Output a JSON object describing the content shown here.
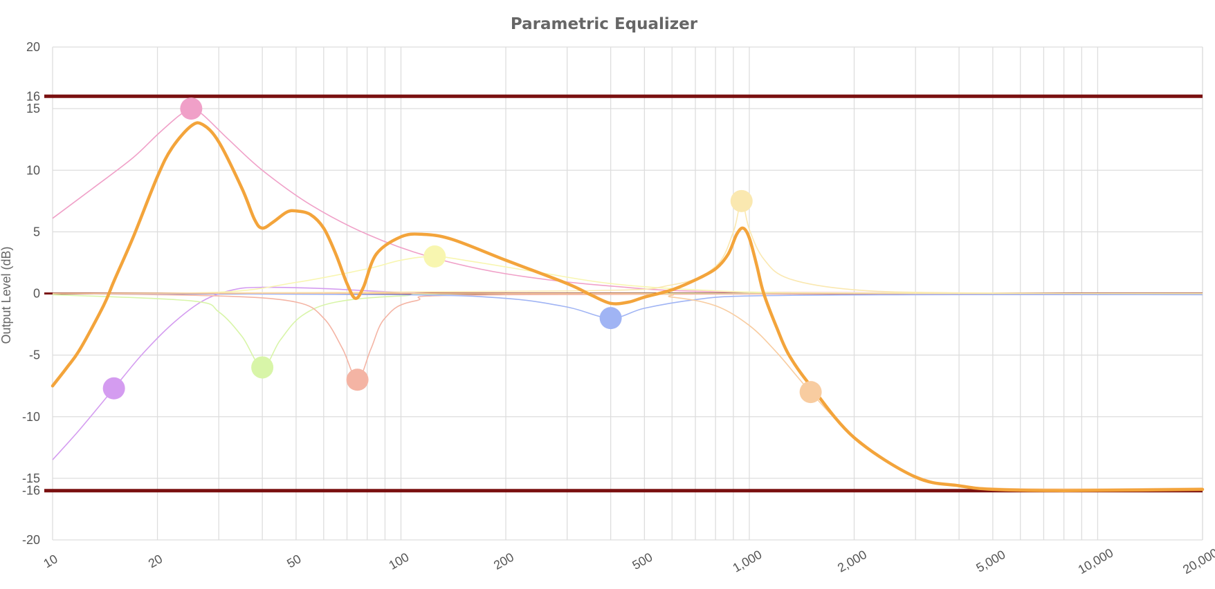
{
  "chart_data": {
    "type": "line",
    "title": "Parametric Equalizer",
    "xlabel": "",
    "ylabel": "Output Level (dB)",
    "x_scale": "log",
    "xlim": [
      10,
      20000
    ],
    "ylim": [
      -20,
      20
    ],
    "x_ticks": [
      10,
      20,
      50,
      100,
      200,
      500,
      1000,
      2000,
      5000,
      10000,
      20000
    ],
    "x_tick_labels": [
      "10",
      "20",
      "50",
      "100",
      "200",
      "500",
      "1,000",
      "2,000",
      "5,000",
      "10,000",
      "20,000"
    ],
    "y_ticks": [
      20,
      16,
      15,
      10,
      5,
      0,
      -5,
      -10,
      -15,
      -16,
      -20
    ],
    "y_tick_labels": [
      "20",
      "16",
      "15",
      "10",
      "5",
      "0",
      "-5",
      "-10",
      "-15",
      "-16",
      "-20"
    ],
    "grid": true,
    "reference_lines": [
      {
        "y": 16,
        "color": "#7a1010"
      },
      {
        "y": 0,
        "color": "#7a1010"
      },
      {
        "y": -16,
        "color": "#7a1010"
      }
    ],
    "bands": [
      {
        "freq": 15,
        "gain": -7.7,
        "color": "#d49cf0",
        "curve": [
          [
            10,
            -13.5
          ],
          [
            12,
            -11
          ],
          [
            15,
            -7.7
          ],
          [
            18,
            -5
          ],
          [
            22,
            -2.5
          ],
          [
            27,
            -0.6
          ],
          [
            33,
            0.3
          ],
          [
            40,
            0.5
          ],
          [
            60,
            0.4
          ],
          [
            100,
            0.1
          ],
          [
            200,
            0
          ],
          [
            20000,
            0
          ]
        ]
      },
      {
        "freq": 25,
        "gain": 15,
        "color": "#f0a0c8",
        "curve": [
          [
            10,
            6.1
          ],
          [
            13,
            8.5
          ],
          [
            17,
            11
          ],
          [
            20,
            12.9
          ],
          [
            23,
            14.4
          ],
          [
            25,
            15
          ],
          [
            27,
            14.5
          ],
          [
            32,
            12.5
          ],
          [
            40,
            10
          ],
          [
            55,
            7.2
          ],
          [
            80,
            4.8
          ],
          [
            120,
            3
          ],
          [
            200,
            1.6
          ],
          [
            400,
            0.6
          ],
          [
            1000,
            0.1
          ],
          [
            20000,
            0
          ]
        ]
      },
      {
        "freq": 40,
        "gain": -6,
        "color": "#d8f5a8",
        "curve": [
          [
            10,
            -0.1
          ],
          [
            25,
            -0.6
          ],
          [
            30,
            -1.5
          ],
          [
            35,
            -3.5
          ],
          [
            40,
            -6
          ],
          [
            45,
            -3.8
          ],
          [
            52,
            -1.8
          ],
          [
            65,
            -0.7
          ],
          [
            100,
            -0.2
          ],
          [
            200,
            0
          ],
          [
            20000,
            0
          ]
        ]
      },
      {
        "freq": 75,
        "gain": -7,
        "color": "#f4b4a4",
        "curve": [
          [
            10,
            0
          ],
          [
            30,
            -0.2
          ],
          [
            50,
            -0.7
          ],
          [
            60,
            -2
          ],
          [
            68,
            -4.5
          ],
          [
            75,
            -7
          ],
          [
            82,
            -4.5
          ],
          [
            90,
            -2
          ],
          [
            110,
            -0.6
          ],
          [
            200,
            -0.1
          ],
          [
            20000,
            0
          ]
        ]
      },
      {
        "freq": 125,
        "gain": 3,
        "color": "#f8f6b0",
        "curve": [
          [
            10,
            0
          ],
          [
            30,
            0.1
          ],
          [
            50,
            0.9
          ],
          [
            80,
            2
          ],
          [
            100,
            2.7
          ],
          [
            125,
            3
          ],
          [
            160,
            2.6
          ],
          [
            250,
            1.7
          ],
          [
            400,
            0.8
          ],
          [
            700,
            0.3
          ],
          [
            1500,
            0.05
          ],
          [
            20000,
            0
          ]
        ]
      },
      {
        "freq": 400,
        "gain": -2,
        "color": "#a0b4f4",
        "curve": [
          [
            10,
            0
          ],
          [
            100,
            -0.1
          ],
          [
            200,
            -0.4
          ],
          [
            300,
            -1.1
          ],
          [
            400,
            -2
          ],
          [
            500,
            -1.2
          ],
          [
            700,
            -0.5
          ],
          [
            1000,
            -0.2
          ],
          [
            3000,
            -0.1
          ],
          [
            20000,
            -0.1
          ]
        ]
      },
      {
        "freq": 950,
        "gain": 7.5,
        "color": "#fae8b0",
        "curve": [
          [
            10,
            0
          ],
          [
            300,
            0.2
          ],
          [
            600,
            0.7
          ],
          [
            800,
            2.2
          ],
          [
            900,
            5
          ],
          [
            950,
            7.5
          ],
          [
            1000,
            5.2
          ],
          [
            1100,
            2.8
          ],
          [
            1300,
            1.2
          ],
          [
            2000,
            0.3
          ],
          [
            4000,
            0.05
          ],
          [
            20000,
            0
          ]
        ]
      },
      {
        "freq": 1500,
        "gain": -8,
        "color": "#f8cca0",
        "curve": [
          [
            10,
            0
          ],
          [
            400,
            0
          ],
          [
            600,
            -0.3
          ],
          [
            800,
            -1
          ],
          [
            1000,
            -2.6
          ],
          [
            1200,
            -4.8
          ],
          [
            1500,
            -8
          ],
          [
            2000,
            -11.6
          ],
          [
            3000,
            -14.8
          ],
          [
            5000,
            -15.8
          ],
          [
            20000,
            -15.8
          ]
        ]
      }
    ],
    "series": [
      {
        "name": "",
        "color": "#f3a43b",
        "points": [
          [
            10,
            -7.5
          ],
          [
            11,
            -6
          ],
          [
            12,
            -4.5
          ],
          [
            14,
            -1
          ],
          [
            15,
            1
          ],
          [
            17,
            4.5
          ],
          [
            20,
            9.5
          ],
          [
            22,
            11.8
          ],
          [
            25,
            13.6
          ],
          [
            27,
            13.7
          ],
          [
            30,
            12.3
          ],
          [
            35,
            8.5
          ],
          [
            38,
            6
          ],
          [
            40,
            5.3
          ],
          [
            43,
            5.8
          ],
          [
            47,
            6.6
          ],
          [
            50,
            6.7
          ],
          [
            55,
            6.4
          ],
          [
            60,
            5.3
          ],
          [
            65,
            3.2
          ],
          [
            70,
            0.8
          ],
          [
            74,
            -0.4
          ],
          [
            78,
            0.5
          ],
          [
            85,
            3.2
          ],
          [
            100,
            4.6
          ],
          [
            115,
            4.8
          ],
          [
            140,
            4.4
          ],
          [
            200,
            2.7
          ],
          [
            300,
            0.8
          ],
          [
            350,
            -0.1
          ],
          [
            400,
            -0.8
          ],
          [
            450,
            -0.7
          ],
          [
            500,
            -0.3
          ],
          [
            600,
            0.3
          ],
          [
            700,
            1.1
          ],
          [
            800,
            2
          ],
          [
            870,
            3.2
          ],
          [
            920,
            4.8
          ],
          [
            960,
            5.3
          ],
          [
            1000,
            4.5
          ],
          [
            1050,
            2.3
          ],
          [
            1100,
            0
          ],
          [
            1200,
            -2.8
          ],
          [
            1300,
            -5
          ],
          [
            1500,
            -7.5
          ],
          [
            2000,
            -11.7
          ],
          [
            3000,
            -14.9
          ],
          [
            4000,
            -15.6
          ],
          [
            5000,
            -15.9
          ],
          [
            8000,
            -16
          ],
          [
            20000,
            -15.9
          ]
        ]
      }
    ]
  }
}
